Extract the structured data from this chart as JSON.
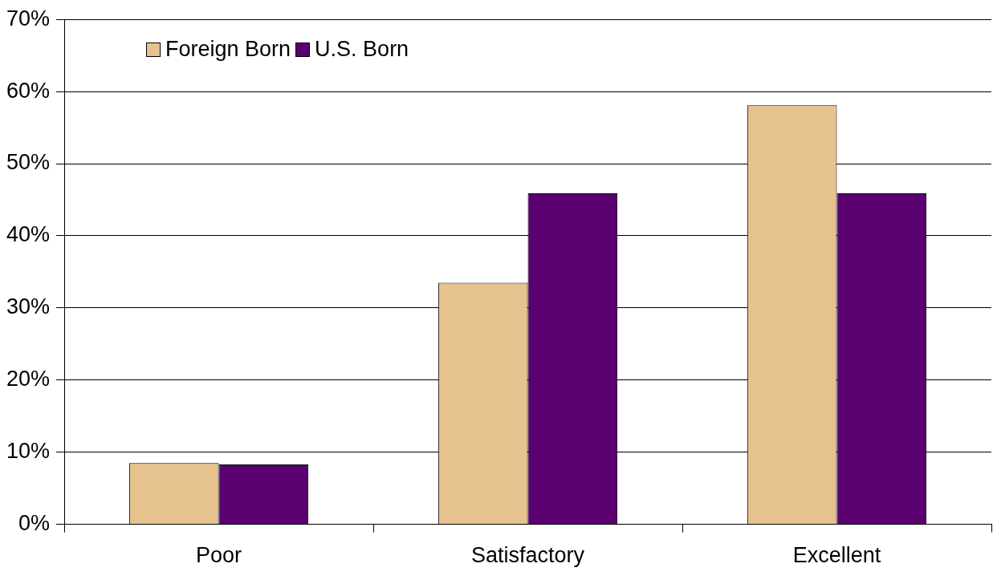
{
  "chart_data": {
    "type": "bar",
    "categories": [
      "Poor",
      "Satisfactory",
      "Excellent"
    ],
    "series": [
      {
        "name": "Foreign Born",
        "color": "#e6c38e",
        "values": [
          8.5,
          33.5,
          58.1
        ]
      },
      {
        "name": "U.S. Born",
        "color": "#5a0070",
        "values": [
          8.3,
          45.9,
          45.9
        ]
      }
    ],
    "ylim": [
      0,
      70
    ],
    "yticks": [
      {
        "value": 0,
        "label": "0%"
      },
      {
        "value": 10,
        "label": "10%"
      },
      {
        "value": 20,
        "label": "20%"
      },
      {
        "value": 30,
        "label": "30%"
      },
      {
        "value": 40,
        "label": "40%"
      },
      {
        "value": 50,
        "label": "50%"
      },
      {
        "value": 60,
        "label": "60%"
      },
      {
        "value": 70,
        "label": "70%"
      }
    ],
    "grid": "y",
    "legend": "top left"
  }
}
